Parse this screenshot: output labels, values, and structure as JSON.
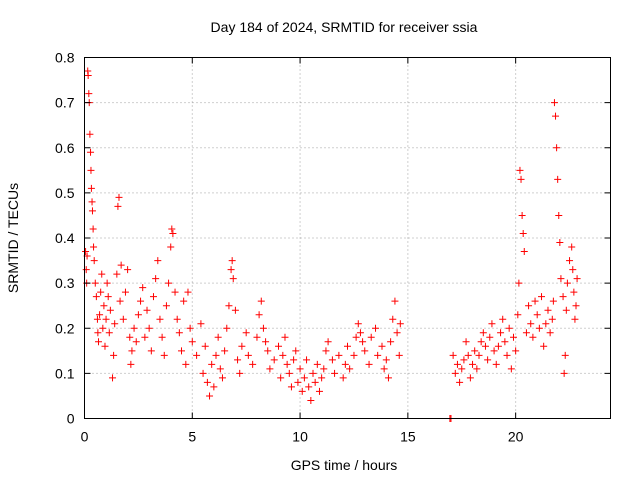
{
  "colors": {
    "series": "#ff0000",
    "grid": "#a0a0a0",
    "axis": "#000000"
  },
  "chart_data": {
    "type": "scatter",
    "title": "Day 184 of 2024, SRMTID for receiver ssia",
    "xlabel": "GPS time / hours",
    "ylabel": "SRMTID / TECUs",
    "xlim": [
      0,
      24.4
    ],
    "ylim": [
      0,
      0.8
    ],
    "grid": true,
    "xticks": [
      0,
      5,
      10,
      15,
      20
    ],
    "xtick_labels": [
      "0",
      "5",
      "10",
      "15",
      "20"
    ],
    "yticks": [
      0,
      0.1,
      0.2,
      0.3,
      0.4,
      0.5,
      0.6,
      0.7,
      0.8
    ],
    "ytick_labels": [
      "0",
      "0.1",
      "0.2",
      "0.3",
      "0.4",
      "0.5",
      "0.6",
      "0.7",
      "0.8"
    ],
    "marker": "plus",
    "series": [
      {
        "name": "SRMTID",
        "points": [
          [
            0.05,
            0.37
          ],
          [
            0.08,
            0.33
          ],
          [
            0.1,
            0.3
          ],
          [
            0.12,
            0.36
          ],
          [
            0.15,
            0.77
          ],
          [
            0.17,
            0.76
          ],
          [
            0.2,
            0.72
          ],
          [
            0.22,
            0.7
          ],
          [
            0.25,
            0.63
          ],
          [
            0.28,
            0.59
          ],
          [
            0.3,
            0.55
          ],
          [
            0.32,
            0.51
          ],
          [
            0.35,
            0.48
          ],
          [
            0.37,
            0.46
          ],
          [
            0.4,
            0.42
          ],
          [
            0.42,
            0.38
          ],
          [
            0.45,
            0.35
          ],
          [
            0.5,
            0.3
          ],
          [
            0.55,
            0.27
          ],
          [
            0.6,
            0.22
          ],
          [
            0.62,
            0.19
          ],
          [
            0.65,
            0.17
          ],
          [
            0.7,
            0.23
          ],
          [
            0.75,
            0.28
          ],
          [
            0.8,
            0.32
          ],
          [
            0.85,
            0.2
          ],
          [
            0.9,
            0.25
          ],
          [
            0.95,
            0.16
          ],
          [
            1.0,
            0.22
          ],
          [
            1.05,
            0.3
          ],
          [
            1.1,
            0.27
          ],
          [
            1.15,
            0.19
          ],
          [
            1.2,
            0.24
          ],
          [
            1.3,
            0.09
          ],
          [
            1.35,
            0.14
          ],
          [
            1.4,
            0.21
          ],
          [
            1.5,
            0.32
          ],
          [
            1.55,
            0.47
          ],
          [
            1.6,
            0.49
          ],
          [
            1.65,
            0.26
          ],
          [
            1.7,
            0.34
          ],
          [
            1.8,
            0.22
          ],
          [
            1.9,
            0.28
          ],
          [
            2.0,
            0.33
          ],
          [
            2.1,
            0.18
          ],
          [
            2.15,
            0.12
          ],
          [
            2.2,
            0.15
          ],
          [
            2.3,
            0.2
          ],
          [
            2.4,
            0.17
          ],
          [
            2.5,
            0.23
          ],
          [
            2.6,
            0.26
          ],
          [
            2.7,
            0.29
          ],
          [
            2.8,
            0.18
          ],
          [
            2.9,
            0.24
          ],
          [
            3.0,
            0.2
          ],
          [
            3.1,
            0.15
          ],
          [
            3.2,
            0.27
          ],
          [
            3.3,
            0.31
          ],
          [
            3.4,
            0.35
          ],
          [
            3.5,
            0.22
          ],
          [
            3.6,
            0.18
          ],
          [
            3.7,
            0.14
          ],
          [
            3.8,
            0.25
          ],
          [
            3.9,
            0.3
          ],
          [
            4.0,
            0.38
          ],
          [
            4.05,
            0.42
          ],
          [
            4.1,
            0.41
          ],
          [
            4.2,
            0.28
          ],
          [
            4.3,
            0.22
          ],
          [
            4.4,
            0.19
          ],
          [
            4.5,
            0.15
          ],
          [
            4.6,
            0.26
          ],
          [
            4.7,
            0.12
          ],
          [
            4.8,
            0.28
          ],
          [
            4.9,
            0.2
          ],
          [
            5.0,
            0.17
          ],
          [
            5.2,
            0.14
          ],
          [
            5.4,
            0.21
          ],
          [
            5.5,
            0.1
          ],
          [
            5.6,
            0.16
          ],
          [
            5.7,
            0.08
          ],
          [
            5.8,
            0.05
          ],
          [
            5.9,
            0.12
          ],
          [
            6.0,
            0.07
          ],
          [
            6.1,
            0.14
          ],
          [
            6.2,
            0.18
          ],
          [
            6.3,
            0.11
          ],
          [
            6.4,
            0.09
          ],
          [
            6.5,
            0.15
          ],
          [
            6.6,
            0.2
          ],
          [
            6.7,
            0.25
          ],
          [
            6.8,
            0.33
          ],
          [
            6.85,
            0.35
          ],
          [
            6.9,
            0.31
          ],
          [
            7.0,
            0.24
          ],
          [
            7.1,
            0.13
          ],
          [
            7.2,
            0.1
          ],
          [
            7.3,
            0.16
          ],
          [
            7.5,
            0.19
          ],
          [
            7.6,
            0.14
          ],
          [
            7.8,
            0.12
          ],
          [
            8.0,
            0.18
          ],
          [
            8.1,
            0.23
          ],
          [
            8.2,
            0.26
          ],
          [
            8.3,
            0.2
          ],
          [
            8.4,
            0.17
          ],
          [
            8.5,
            0.15
          ],
          [
            8.6,
            0.11
          ],
          [
            8.8,
            0.13
          ],
          [
            9.0,
            0.16
          ],
          [
            9.1,
            0.09
          ],
          [
            9.2,
            0.14
          ],
          [
            9.3,
            0.18
          ],
          [
            9.4,
            0.12
          ],
          [
            9.5,
            0.1
          ],
          [
            9.6,
            0.07
          ],
          [
            9.7,
            0.13
          ],
          [
            9.8,
            0.15
          ],
          [
            9.9,
            0.08
          ],
          [
            10.0,
            0.11
          ],
          [
            10.1,
            0.06
          ],
          [
            10.2,
            0.09
          ],
          [
            10.3,
            0.13
          ],
          [
            10.4,
            0.07
          ],
          [
            10.5,
            0.04
          ],
          [
            10.6,
            0.1
          ],
          [
            10.7,
            0.08
          ],
          [
            10.8,
            0.12
          ],
          [
            10.9,
            0.06
          ],
          [
            11.0,
            0.09
          ],
          [
            11.1,
            0.11
          ],
          [
            11.2,
            0.15
          ],
          [
            11.3,
            0.17
          ],
          [
            11.5,
            0.13
          ],
          [
            11.6,
            0.1
          ],
          [
            11.8,
            0.14
          ],
          [
            12.0,
            0.09
          ],
          [
            12.1,
            0.12
          ],
          [
            12.2,
            0.16
          ],
          [
            12.3,
            0.11
          ],
          [
            12.5,
            0.14
          ],
          [
            12.6,
            0.18
          ],
          [
            12.7,
            0.21
          ],
          [
            12.8,
            0.19
          ],
          [
            12.9,
            0.17
          ],
          [
            13.0,
            0.15
          ],
          [
            13.2,
            0.12
          ],
          [
            13.3,
            0.18
          ],
          [
            13.5,
            0.2
          ],
          [
            13.6,
            0.14
          ],
          [
            13.8,
            0.16
          ],
          [
            13.9,
            0.11
          ],
          [
            14.0,
            0.13
          ],
          [
            14.1,
            0.09
          ],
          [
            14.2,
            0.17
          ],
          [
            14.3,
            0.22
          ],
          [
            14.4,
            0.26
          ],
          [
            14.5,
            0.19
          ],
          [
            14.6,
            0.14
          ],
          [
            14.65,
            0.21
          ],
          [
            16.95,
            0.0
          ],
          [
            17.0,
            0.0
          ],
          [
            17.1,
            0.14
          ],
          [
            17.2,
            0.1
          ],
          [
            17.3,
            0.12
          ],
          [
            17.4,
            0.08
          ],
          [
            17.5,
            0.11
          ],
          [
            17.6,
            0.13
          ],
          [
            17.7,
            0.17
          ],
          [
            17.8,
            0.14
          ],
          [
            17.9,
            0.09
          ],
          [
            18.0,
            0.12
          ],
          [
            18.1,
            0.15
          ],
          [
            18.2,
            0.11
          ],
          [
            18.3,
            0.14
          ],
          [
            18.4,
            0.17
          ],
          [
            18.5,
            0.19
          ],
          [
            18.6,
            0.16
          ],
          [
            18.7,
            0.13
          ],
          [
            18.8,
            0.18
          ],
          [
            18.9,
            0.21
          ],
          [
            19.0,
            0.15
          ],
          [
            19.1,
            0.12
          ],
          [
            19.2,
            0.16
          ],
          [
            19.3,
            0.19
          ],
          [
            19.4,
            0.22
          ],
          [
            19.5,
            0.17
          ],
          [
            19.6,
            0.14
          ],
          [
            19.7,
            0.2
          ],
          [
            19.8,
            0.11
          ],
          [
            19.9,
            0.18
          ],
          [
            20.0,
            0.15
          ],
          [
            20.1,
            0.23
          ],
          [
            20.15,
            0.3
          ],
          [
            20.2,
            0.55
          ],
          [
            20.25,
            0.53
          ],
          [
            20.3,
            0.45
          ],
          [
            20.35,
            0.41
          ],
          [
            20.4,
            0.37
          ],
          [
            20.5,
            0.19
          ],
          [
            20.6,
            0.25
          ],
          [
            20.7,
            0.21
          ],
          [
            20.8,
            0.18
          ],
          [
            20.9,
            0.26
          ],
          [
            21.0,
            0.23
          ],
          [
            21.1,
            0.2
          ],
          [
            21.2,
            0.27
          ],
          [
            21.3,
            0.16
          ],
          [
            21.4,
            0.21
          ],
          [
            21.5,
            0.24
          ],
          [
            21.6,
            0.19
          ],
          [
            21.7,
            0.22
          ],
          [
            21.75,
            0.26
          ],
          [
            21.8,
            0.7
          ],
          [
            21.85,
            0.67
          ],
          [
            21.9,
            0.6
          ],
          [
            21.95,
            0.53
          ],
          [
            22.0,
            0.45
          ],
          [
            22.05,
            0.39
          ],
          [
            22.1,
            0.31
          ],
          [
            22.2,
            0.27
          ],
          [
            22.25,
            0.1
          ],
          [
            22.3,
            0.14
          ],
          [
            22.35,
            0.24
          ],
          [
            22.4,
            0.3
          ],
          [
            22.5,
            0.35
          ],
          [
            22.6,
            0.38
          ],
          [
            22.65,
            0.33
          ],
          [
            22.7,
            0.28
          ],
          [
            22.75,
            0.22
          ],
          [
            22.8,
            0.25
          ],
          [
            22.85,
            0.31
          ]
        ]
      }
    ]
  }
}
